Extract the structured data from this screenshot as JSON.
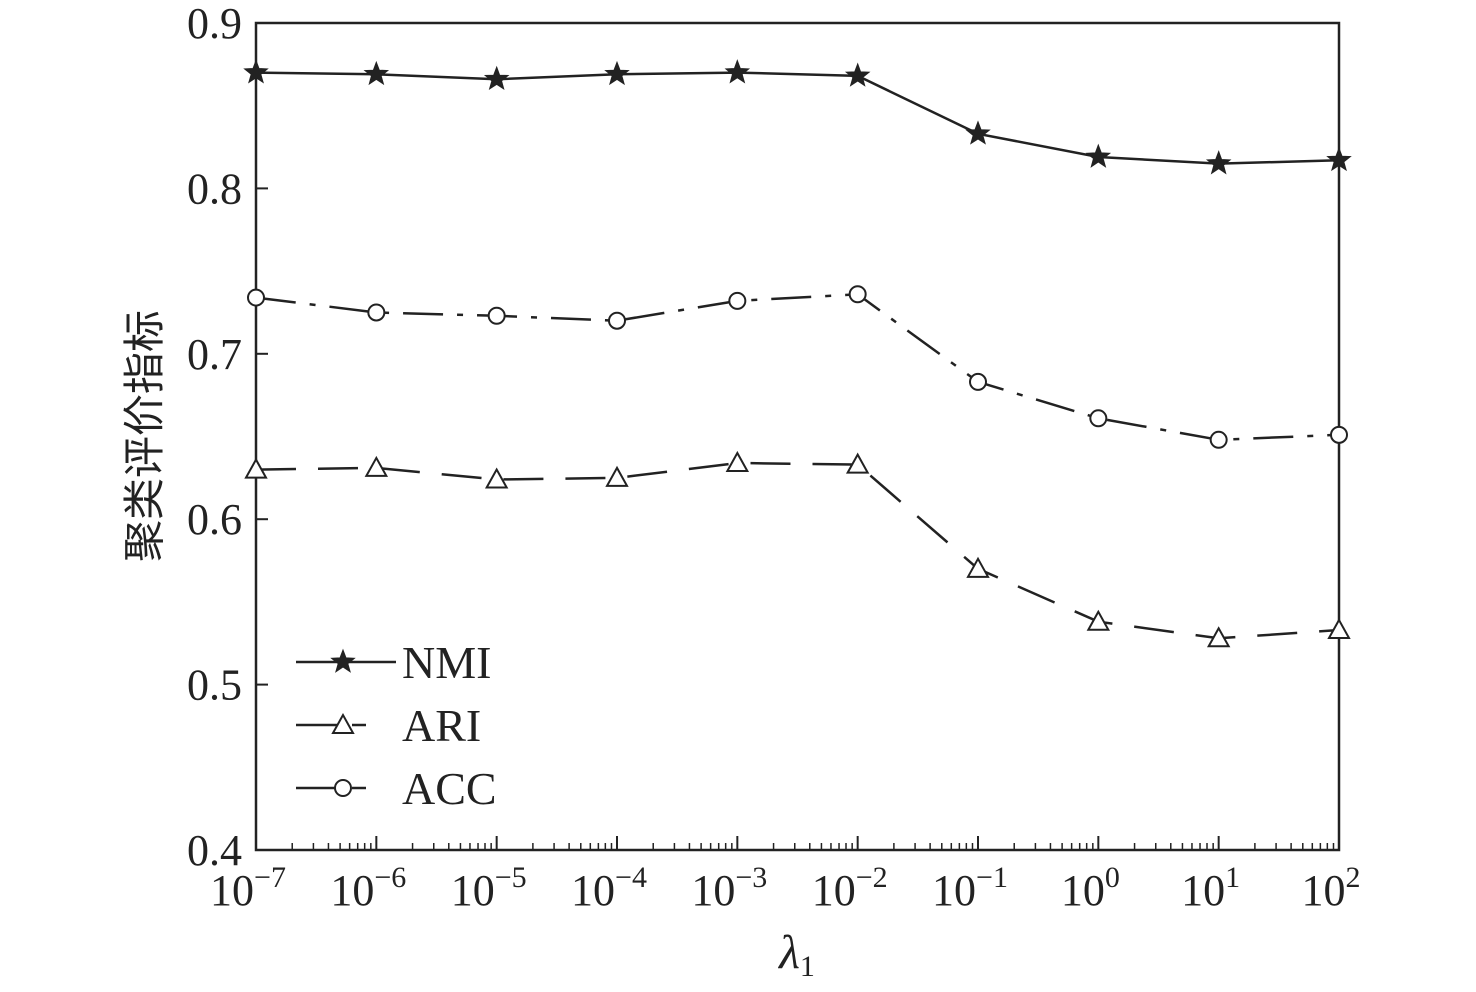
{
  "chart_data": {
    "type": "line",
    "xscale": "log",
    "x": [
      1e-07,
      1e-06,
      1e-05,
      0.0001,
      0.001,
      0.01,
      0.1,
      1,
      10,
      100
    ],
    "x_ticks": [
      {
        "base": "10",
        "exp": "−7"
      },
      {
        "base": "10",
        "exp": "−6"
      },
      {
        "base": "10",
        "exp": "−5"
      },
      {
        "base": "10",
        "exp": "−4"
      },
      {
        "base": "10",
        "exp": "−3"
      },
      {
        "base": "10",
        "exp": "−2"
      },
      {
        "base": "10",
        "exp": "−1"
      },
      {
        "base": "10",
        "exp": "0"
      },
      {
        "base": "10",
        "exp": "1"
      },
      {
        "base": "10",
        "exp": "2"
      }
    ],
    "ylim": [
      0.4,
      0.9
    ],
    "y_ticks": [
      "0.4",
      "0.5",
      "0.6",
      "0.7",
      "0.8",
      "0.9"
    ],
    "xlabel": {
      "symbol": "λ",
      "sub": "1"
    },
    "ylabel": "聚类评价指标",
    "legend_position": "lower-left",
    "grid": false,
    "series": [
      {
        "name": "NMI",
        "marker": "star",
        "line": "solid",
        "values": [
          0.87,
          0.869,
          0.866,
          0.869,
          0.87,
          0.868,
          0.833,
          0.819,
          0.815,
          0.817
        ]
      },
      {
        "name": "ARI",
        "marker": "triangle",
        "line": "dashed",
        "values": [
          0.63,
          0.631,
          0.624,
          0.625,
          0.634,
          0.633,
          0.57,
          0.538,
          0.528,
          0.533
        ]
      },
      {
        "name": "ACC",
        "marker": "circle",
        "line": "dashdot",
        "values": [
          0.734,
          0.725,
          0.723,
          0.72,
          0.732,
          0.736,
          0.683,
          0.661,
          0.648,
          0.651
        ]
      }
    ],
    "colors": {
      "line": "#222222",
      "axis": "#222222"
    }
  }
}
